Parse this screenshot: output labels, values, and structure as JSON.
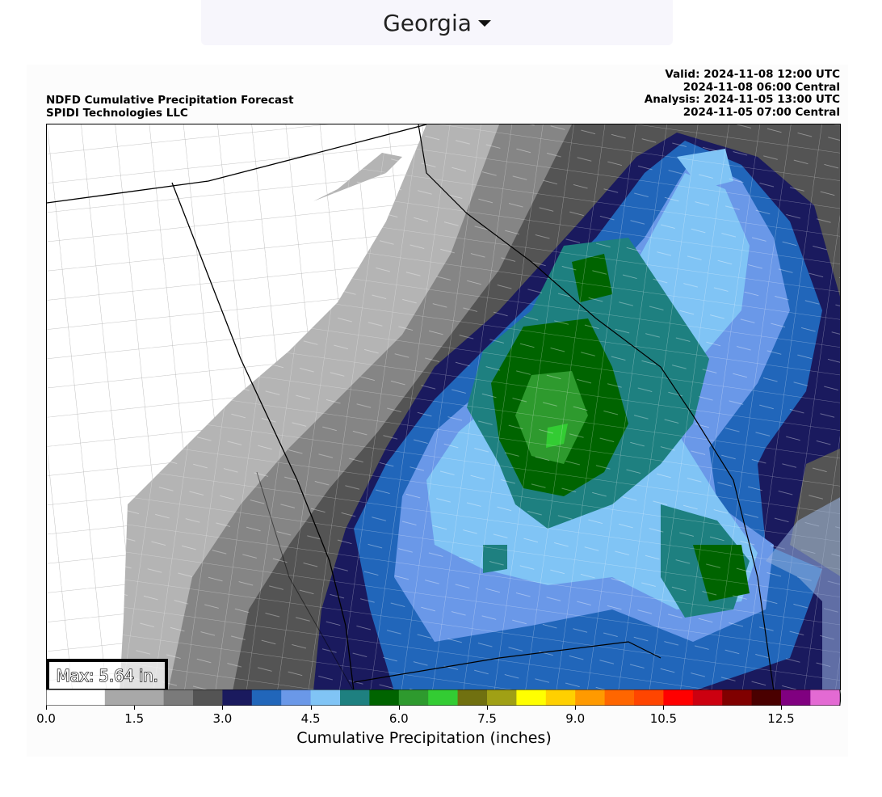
{
  "region_selector": {
    "label": "Georgia",
    "icon": "caret-down-icon"
  },
  "header": {
    "left": [
      "NDFD Cumulative Precipitation Forecast",
      "SPIDI Technologies LLC"
    ],
    "right": [
      "Valid: 2024-11-08 12:00 UTC",
      "2024-11-08 06:00 Central",
      "Analysis: 2024-11-05 13:00 UTC",
      "2024-11-05 07:00 Central"
    ]
  },
  "max_label": "Max: 5.64 in.",
  "colorbar": {
    "title": "Cumulative Precipitation (inches)",
    "min": 0,
    "max": 13.5,
    "step": 0.5,
    "tick_values": [
      0,
      1.5,
      3,
      4.5,
      6,
      7.5,
      9,
      10.5,
      12.5
    ],
    "tick_labels": [
      "0.0",
      "1.5",
      "3.0",
      "4.5",
      "6.0",
      "7.5",
      "9.0",
      "10.5",
      "12.5"
    ],
    "colors": [
      "#ffffff",
      "#ffffff",
      "#a8a8a8",
      "#a8a8a8",
      "#7a7a7a",
      "#545454",
      "#1a1a5e",
      "#2166ba",
      "#6a98e8",
      "#80c4f5",
      "#1e8080",
      "#006400",
      "#2e9a2e",
      "#33cc33",
      "#707010",
      "#a0a015",
      "#ffff00",
      "#ffd000",
      "#ff9a00",
      "#ff6600",
      "#ff4500",
      "#ff0000",
      "#cc0010",
      "#800000",
      "#4a0000",
      "#800080",
      "#b54cd2",
      "#e36ad3"
    ]
  }
}
